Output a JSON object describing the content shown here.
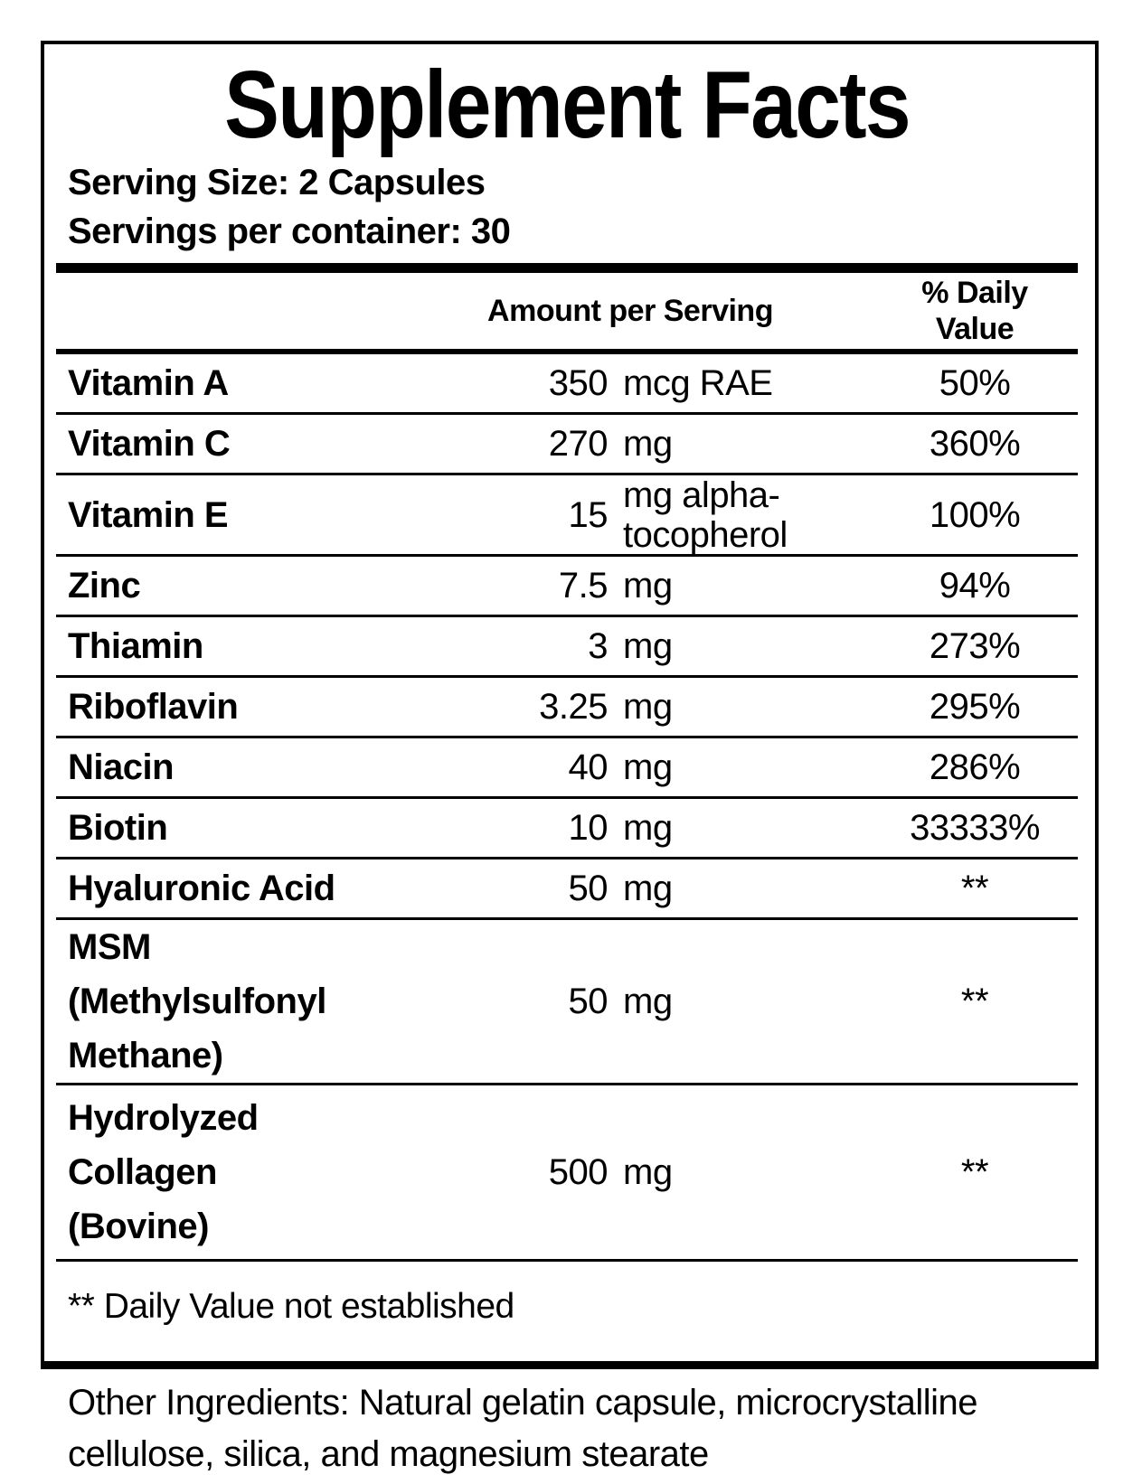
{
  "title": "Supplement Facts",
  "serving_size": "Serving Size: 2 Capsules",
  "servings_per_container": "Servings per container: 30",
  "table": {
    "amount_header": "Amount per Serving",
    "dv_header": "% Daily\nValue",
    "rows": [
      {
        "name": "Vitamin A",
        "amount": "350",
        "unit": "mcg RAE",
        "dv": "50%"
      },
      {
        "name": "Vitamin C",
        "amount": "270",
        "unit": "mg",
        "dv": "360%"
      },
      {
        "name": "Vitamin E",
        "amount": "15",
        "unit": "mg alpha-\ntocopherol",
        "dv": "100%"
      },
      {
        "name": "Zinc",
        "amount": "7.5",
        "unit": "mg",
        "dv": "94%"
      },
      {
        "name": "Thiamin",
        "amount": "3",
        "unit": "mg",
        "dv": "273%"
      },
      {
        "name": "Riboflavin",
        "amount": "3.25",
        "unit": "mg",
        "dv": "295%"
      },
      {
        "name": "Niacin",
        "amount": "40",
        "unit": "mg",
        "dv": "286%"
      },
      {
        "name": "Biotin",
        "amount": "10",
        "unit": "mg",
        "dv": "33333%"
      },
      {
        "name": "Hyaluronic Acid",
        "amount": "50",
        "unit": "mg",
        "dv": "**"
      },
      {
        "name": "MSM\n(Methylsulfonyl\nMethane)",
        "amount": "50",
        "unit": "mg",
        "dv": "**"
      },
      {
        "name": "Hydrolyzed\nCollagen\n(Bovine)",
        "amount": "500",
        "unit": "mg",
        "dv": "**"
      }
    ]
  },
  "footnote": "** Daily Value not established",
  "other_ingredients": "Other Ingredients: Natural gelatin capsule, microcrystalline\ncellulose, silica, and magnesium stearate",
  "colors": {
    "text": "#000000",
    "background": "#ffffff",
    "rule": "#000000"
  }
}
